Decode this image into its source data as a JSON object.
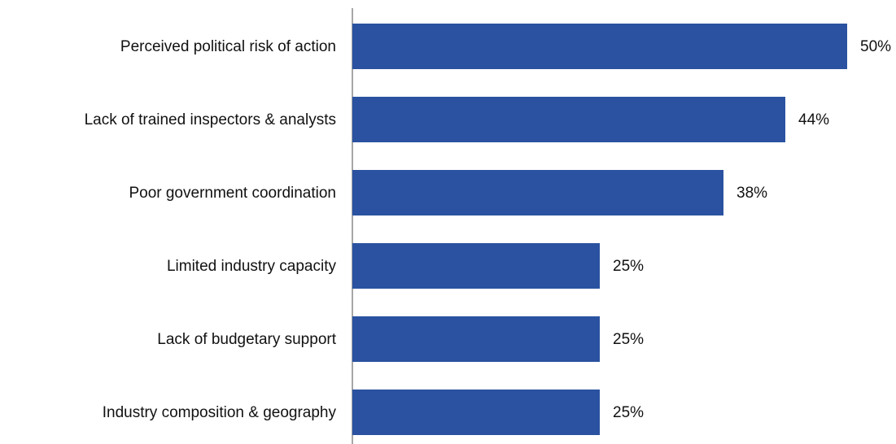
{
  "chart_data": {
    "type": "bar",
    "orientation": "horizontal",
    "categories": [
      "Perceived political risk of action",
      "Lack of trained inspectors & analysts",
      "Poor government coordination",
      "Limited industry capacity",
      "Lack of budgetary support",
      "Industry composition & geography"
    ],
    "values": [
      50,
      43.75,
      37.5,
      25,
      25,
      25
    ],
    "value_labels": [
      "50%",
      "44%",
      "38%",
      "25%",
      "25%",
      "25%"
    ],
    "color": "#2a52a0",
    "xlim": [
      0,
      50
    ]
  }
}
